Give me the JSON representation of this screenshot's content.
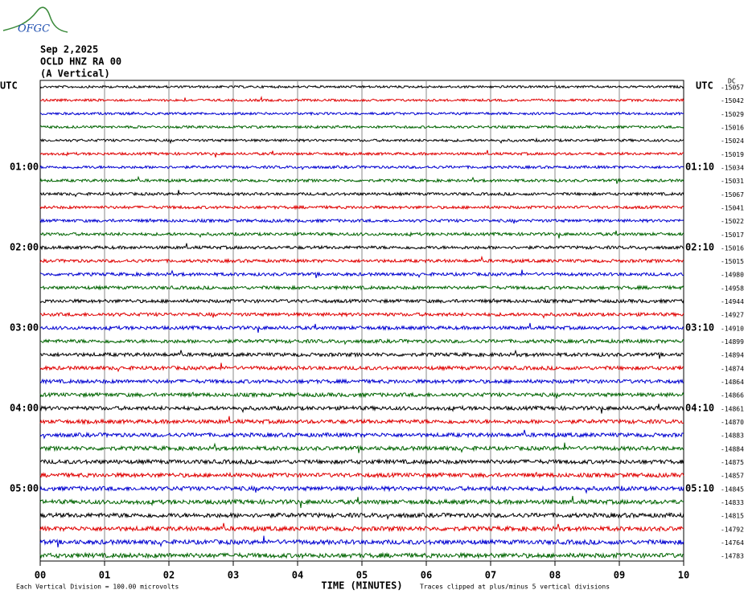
{
  "header": {
    "logo": "OFGC",
    "date": "Sep 2,2025",
    "station": "OCLD HNZ RA 00",
    "component": "(A Vertical)"
  },
  "left_axis": {
    "title": "UTC",
    "labels": [
      "01:00",
      "02:00",
      "03:00",
      "04:00",
      "05:00"
    ]
  },
  "right_axis": {
    "title": "UTC",
    "labels": [
      "01:10",
      "02:10",
      "03:10",
      "04:10",
      "05:10"
    ],
    "offset_title": "DC",
    "offsets": [
      -15057,
      -15042,
      -15029,
      -15016,
      -15024,
      -15019,
      -15034,
      -15031,
      -15067,
      -15041,
      -15022,
      -15017,
      -15016,
      -15015,
      -14980,
      -14958,
      -14944,
      -14927,
      -14910,
      -14899,
      -14894,
      -14874,
      -14864,
      -14866,
      -14861,
      -14870,
      -14883,
      -14884,
      -14875,
      -14857,
      -14845,
      -14833,
      -14815,
      -14792,
      -14764,
      -14783
    ]
  },
  "trace_colors": [
    "#000000",
    "#e00000",
    "#0000d0",
    "#006400"
  ],
  "x_axis": {
    "title": "TIME (MINUTES)",
    "ticks": [
      "00",
      "01",
      "02",
      "03",
      "04",
      "05",
      "06",
      "07",
      "08",
      "09",
      "10"
    ]
  },
  "footer": {
    "scale_note": "Each Vertical Division =  100.00 microvolts",
    "clip_note": "Traces clipped at plus/minus 5 vertical divisions"
  }
}
